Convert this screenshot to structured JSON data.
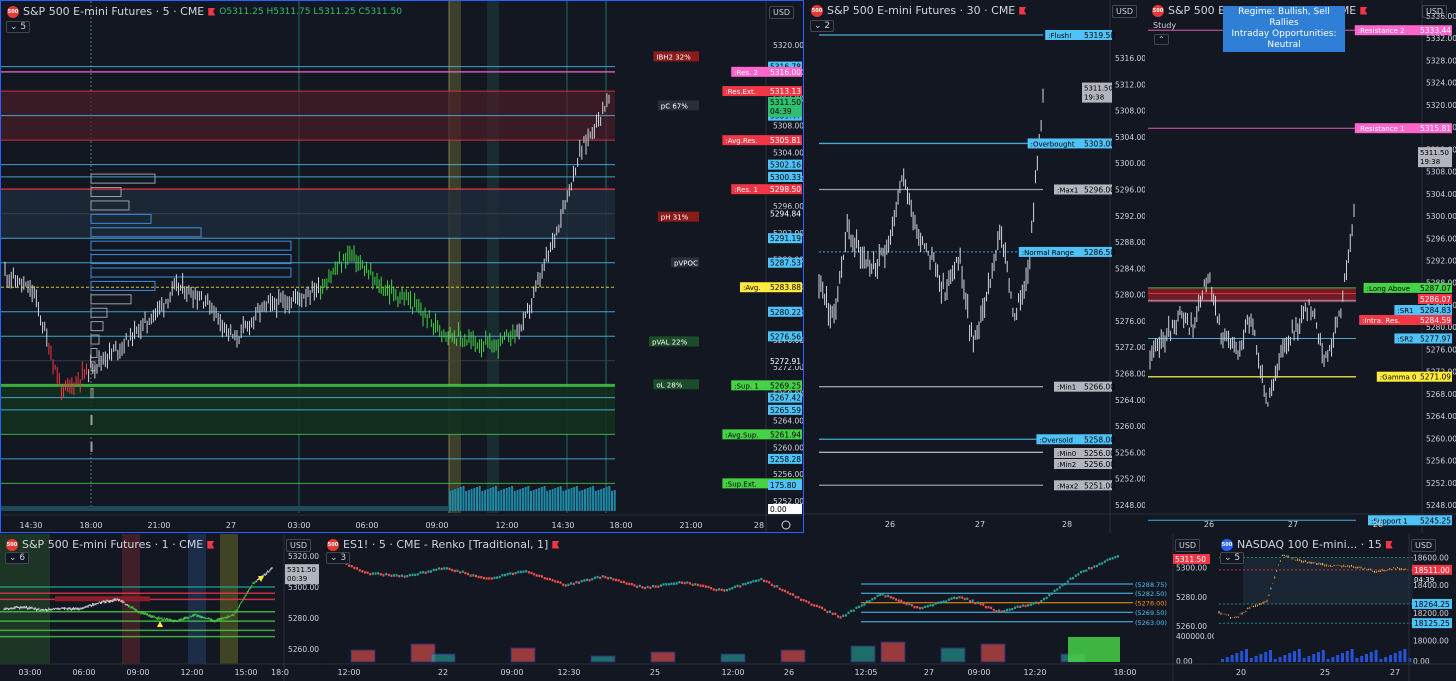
{
  "colors": {
    "bg": "#131722",
    "grid": "#2a2e39",
    "axis": "#787b86",
    "text": "#d1d4dc",
    "cyan": "#26a69a",
    "blue": "#4fc3f7",
    "red": "#f23645",
    "green": "#46d146",
    "pink": "#ff66cc",
    "yellow": "#ffeb3b",
    "gray": "#b2b5be"
  },
  "panels": {
    "p1": {
      "title": "S&P 500 E-mini Futures · 5 · CME",
      "badge": "500",
      "count": "5",
      "currency": "USD",
      "ohlc": {
        "o": "O5311.25",
        "h": "H5311.75",
        "l": "L5311.25",
        "c": "C5311.50"
      },
      "price_ticks": [
        "5320.00",
        "5316.00",
        "5312.00",
        "5308.00",
        "5304.00",
        "5300.00",
        "5296.00",
        "5292.00",
        "5288.00",
        "5284.00",
        "5280.00",
        "5276.00",
        "5272.00",
        "5268.00",
        "5264.00",
        "5260.00",
        "5256.00",
        "5252.00"
      ],
      "time_ticks": [
        "14:30",
        "18:00",
        "21:00",
        "27",
        "03:00",
        "06:00",
        "09:00",
        "12:00",
        "14:30",
        "18:00",
        "21:00",
        "28"
      ],
      "levels": [
        {
          "label": "",
          "price": "5316.78",
          "color": "#4fc3f7"
        },
        {
          "label": ":Res. 2",
          "price": "5316.00",
          "color": "#ff66cc"
        },
        {
          "label": ":Res.Ext.",
          "price": "5313.13",
          "color": "#f23645"
        },
        {
          "label": "",
          "price": "5309.47",
          "color": "#4fc3f7"
        },
        {
          "label": ":Avg.Res.",
          "price": "5305.81",
          "color": "#f23645"
        },
        {
          "label": "",
          "price": "5302.16",
          "color": "#4fc3f7"
        },
        {
          "label": "",
          "price": "5300.33",
          "color": "#4fc3f7"
        },
        {
          "label": ":Res. 1",
          "price": "5298.50",
          "color": "#f23645"
        },
        {
          "label": "",
          "price": "5294.84",
          "color": "#131722"
        },
        {
          "label": "",
          "price": "5291.19",
          "color": "#4fc3f7"
        },
        {
          "label": "",
          "price": "5287.53",
          "color": "#4fc3f7"
        },
        {
          "label": ":Avg.",
          "price": "5283.88",
          "color": "#ffeb3b"
        },
        {
          "label": "",
          "price": "5280.22",
          "color": "#4fc3f7"
        },
        {
          "label": "",
          "price": "5276.56",
          "color": "#4fc3f7"
        },
        {
          "label": "",
          "price": "5272.91",
          "color": "#131722"
        },
        {
          "label": ":Sup. 1",
          "price": "5269.25",
          "color": "#46d146"
        },
        {
          "label": "",
          "price": "5267.42",
          "color": "#4fc3f7"
        },
        {
          "label": "",
          "price": "5265.59",
          "color": "#4fc3f7"
        },
        {
          "label": ":Avg.Sup.",
          "price": "5261.94",
          "color": "#46d146"
        },
        {
          "label": "",
          "price": "5258.28",
          "color": "#4fc3f7"
        },
        {
          "label": ":Sup.Ext.",
          "price": "5254.63",
          "color": "#46d146"
        },
        {
          "label": "",
          "price": "175.80",
          "color": "#4fc3f7"
        },
        {
          "label": "",
          "price": "0.00",
          "color": "#ffffff"
        }
      ],
      "current": {
        "price": "5311.50",
        "countdown": "04:39"
      },
      "tags": [
        {
          "text": "IBH2  32%",
          "price": 5318.3,
          "color": "#8b1a1a"
        },
        {
          "text": "pC   67%",
          "price": 5311.0,
          "color": "#2a2e39"
        },
        {
          "text": "pH   31%",
          "price": 5294.4,
          "color": "#8b1a1a"
        },
        {
          "text": "pVPOC",
          "price": 5287.6,
          "color": "#2a2e39"
        },
        {
          "text": "pVAL   22%",
          "price": 5275.8,
          "color": "#1b4d2a"
        },
        {
          "text": "oL    28%",
          "price": 5269.4,
          "color": "#1b4d2a"
        }
      ]
    },
    "p2": {
      "title": "S&P 500 E-mini Futures · 30 · CME",
      "badge": "500",
      "count": "2",
      "currency": "USD",
      "price_ticks": [
        "5316.00",
        "5312.00",
        "5308.00",
        "5304.00",
        "5300.00",
        "5296.00",
        "5292.00",
        "5288.00",
        "5284.00",
        "5280.00",
        "5276.00",
        "5272.00",
        "5268.00",
        "5264.00",
        "5260.00",
        "5256.00",
        "5252.00",
        "5248.00"
      ],
      "time_ticks": [
        "26",
        "27",
        "28"
      ],
      "levels": [
        {
          "label": ":Flush!",
          "price": "5319.50",
          "color": "#4fc3f7"
        },
        {
          "label": ":Overbought",
          "price": "5303.00",
          "color": "#4fc3f7"
        },
        {
          "label": ":Max1",
          "price": "5296.00",
          "color": "#b2b5be"
        },
        {
          "label": ":Normal Range",
          "price": "5286.50",
          "color": "#4fc3f7"
        },
        {
          "label": ":Min1",
          "price": "5266.00",
          "color": "#b2b5be"
        },
        {
          "label": ":Oversold",
          "price": "5258.00",
          "color": "#4fc3f7"
        },
        {
          "label": ":Min0",
          "price": "5256.00",
          "color": "#b2b5be"
        },
        {
          "label": ":Min2",
          "price": "5256.00",
          "color": "#b2b5be"
        },
        {
          "label": ":Max2",
          "price": "5251.00",
          "color": "#b2b5be"
        }
      ],
      "current": {
        "price": "5311.50",
        "countdown": "19:38"
      }
    },
    "p3": {
      "title": "S&P 500 E-mini Futures · 30 · CME",
      "badge": "500",
      "study": "Study",
      "currency": "USD",
      "regime_line1": "Regime: Bullish, Sell Rallies",
      "regime_line2": "Intraday Opportunities: Neutral",
      "price_ticks": [
        "5336.00",
        "5332.00",
        "5328.00",
        "5324.00",
        "5320.00",
        "5316.00",
        "5312.00",
        "5308.00",
        "5304.00",
        "5300.00",
        "5296.00",
        "5292.00",
        "5288.00",
        "5284.00",
        "5280.00",
        "5276.00",
        "5272.00",
        "5268.00",
        "5264.00",
        "5260.00",
        "5256.00",
        "5252.00",
        "5248.00"
      ],
      "time_ticks": [
        "26",
        "27",
        "28"
      ],
      "levels": [
        {
          "label": ":Resistance 2",
          "price": "5333.44",
          "color": "#ff66cc"
        },
        {
          "label": ":Resistance 1",
          "price": "5315.81",
          "color": "#ff66cc"
        },
        {
          "label": ":Long Above",
          "price": "5287.07",
          "color": "#46d146"
        },
        {
          "label": "",
          "price": "5286.07",
          "color": "#f23645"
        },
        {
          "label": ":SR1",
          "price": "5284.83",
          "color": "#4fc3f7"
        },
        {
          "label": ":Intra. Res.",
          "price": "5284.59",
          "color": "#f23645"
        },
        {
          "label": ":SR2",
          "price": "5277.97",
          "color": "#4fc3f7"
        },
        {
          "label": ":Gamma 0",
          "price": "5271.09",
          "color": "#ffeb3b"
        },
        {
          "label": ":Support 1",
          "price": "5245.25",
          "color": "#4fc3f7"
        }
      ],
      "current": {
        "price": "5311.50",
        "countdown": "19:38"
      }
    },
    "p4": {
      "title": "S&P 500 E-mini Futures · 1 · CME",
      "badge": "500",
      "count": "6",
      "currency": "USD",
      "price_ticks": [
        "5320.00",
        "5300.00",
        "5280.00",
        "5260.00"
      ],
      "time_ticks": [
        "03:00",
        "06:00",
        "09:00",
        "12:00",
        "15:00",
        "18:0"
      ],
      "current": {
        "price": "5311.50",
        "countdown": "00:39"
      }
    },
    "p5": {
      "title": "ES1! · 5 · CME - Renko [Traditional, 1]",
      "badge": "500",
      "count": "3",
      "currency": "USD",
      "price_ticks": [
        "5300.00",
        "5280.00",
        "5260.00",
        "400000.00",
        "0.00"
      ],
      "time_ticks": [
        "12:00",
        "22",
        "09:00",
        "12:30",
        "25",
        "12:00",
        "26",
        "12:05",
        "27",
        "09:00",
        "12:20",
        "18:00"
      ],
      "box_labels": [
        "(5288.75)",
        "(5282.50)",
        "(5276.00)",
        "(5269.50)",
        "(5263.00)"
      ],
      "current": {
        "price": "5311.50"
      }
    },
    "p6": {
      "title": "NASDAQ 100 E-mini... · 15",
      "badge": "500",
      "count": "5",
      "currency": "USD",
      "price_ticks": [
        "18600.00",
        "18400.00",
        "18200.00",
        "18000.00",
        "0.00"
      ],
      "time_ticks": [
        "20",
        "25",
        "27"
      ],
      "levels": [
        {
          "price": "18511.00",
          "color": "#f23645"
        },
        {
          "price": "18264.25",
          "color": "#4fc3f7"
        },
        {
          "price": "18125.25",
          "color": "#4fc3f7"
        }
      ],
      "current": {
        "price": "18511.00",
        "countdown": "04:39"
      }
    }
  }
}
